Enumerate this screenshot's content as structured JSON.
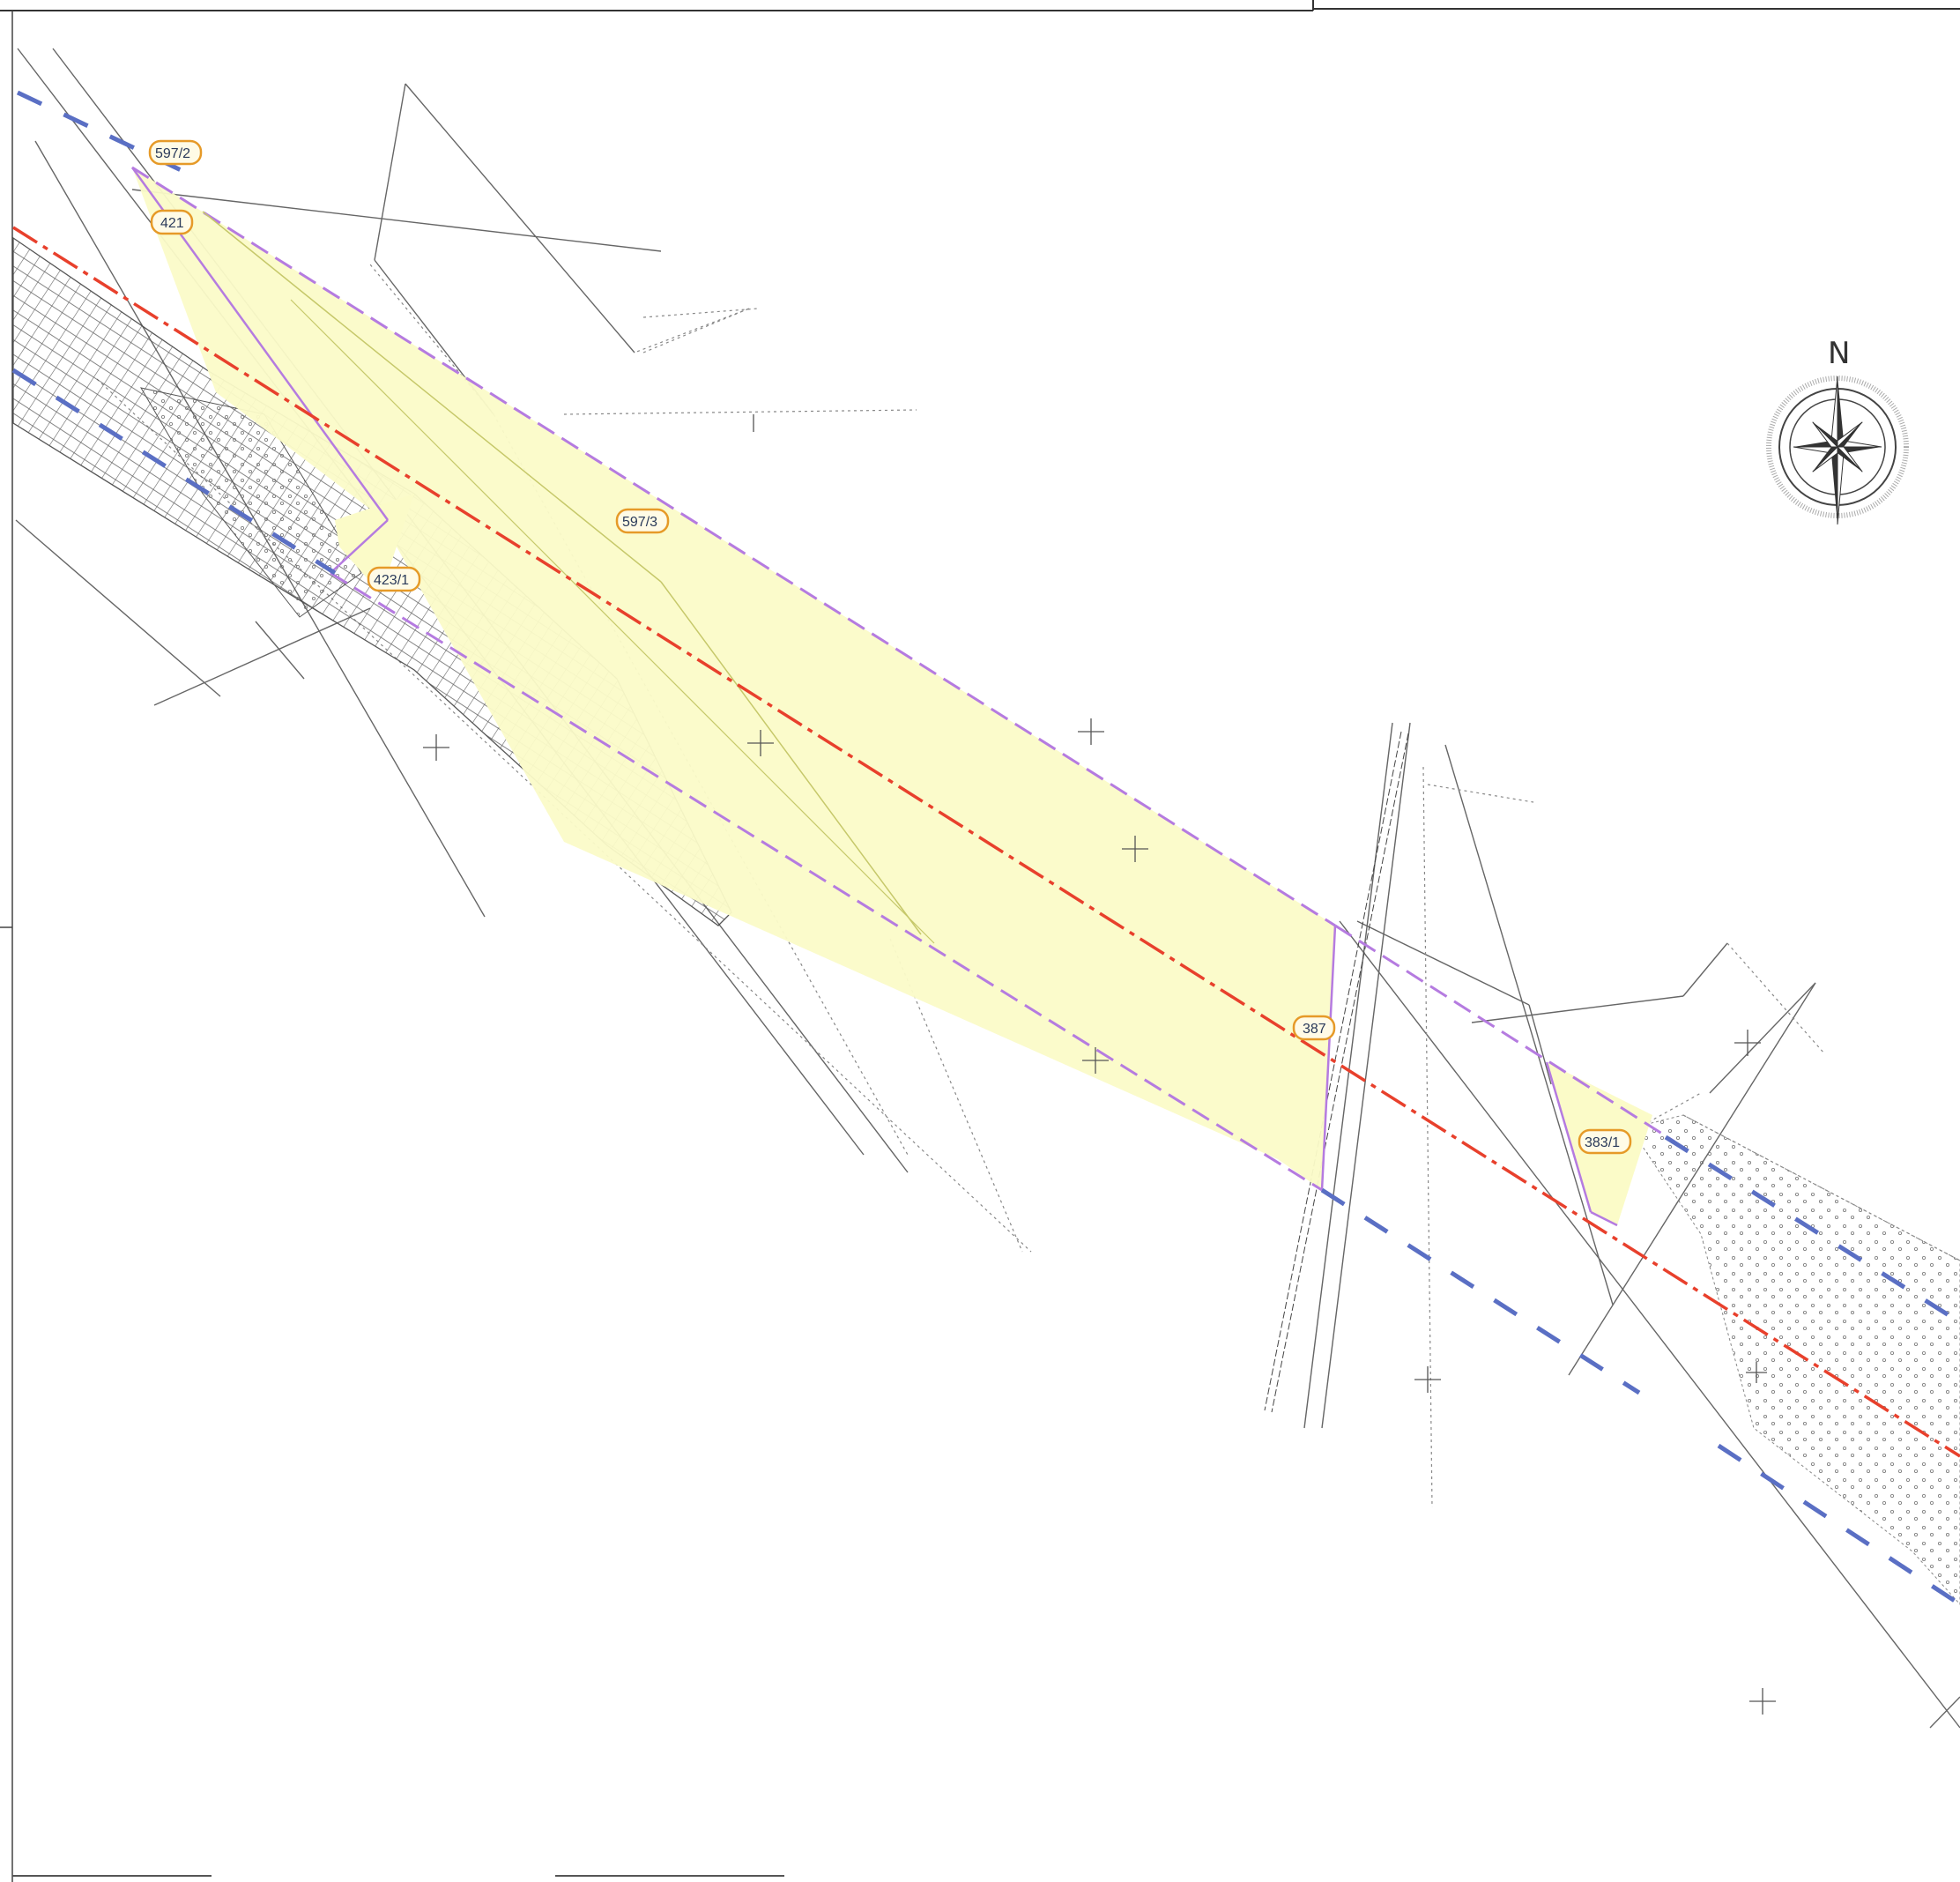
{
  "map": {
    "north_label": "N",
    "parcel_labels": [
      {
        "id": "597-2",
        "text": "597/2"
      },
      {
        "id": "421",
        "text": "421"
      },
      {
        "id": "597-3",
        "text": "597/3"
      },
      {
        "id": "423-1",
        "text": "423/1"
      },
      {
        "id": "387",
        "text": "387"
      },
      {
        "id": "383-1",
        "text": "383/1"
      }
    ],
    "colors": {
      "corridor_fill": "#fbfbc8",
      "corridor_border": "#b57be0",
      "axis_line": "#e8402c",
      "blue_dashed": "#5a6fc4",
      "cadastral_line": "#555555",
      "label_border": "#e69a28"
    },
    "icons": [
      "compass-rose-icon",
      "survey-cross-icon"
    ]
  }
}
